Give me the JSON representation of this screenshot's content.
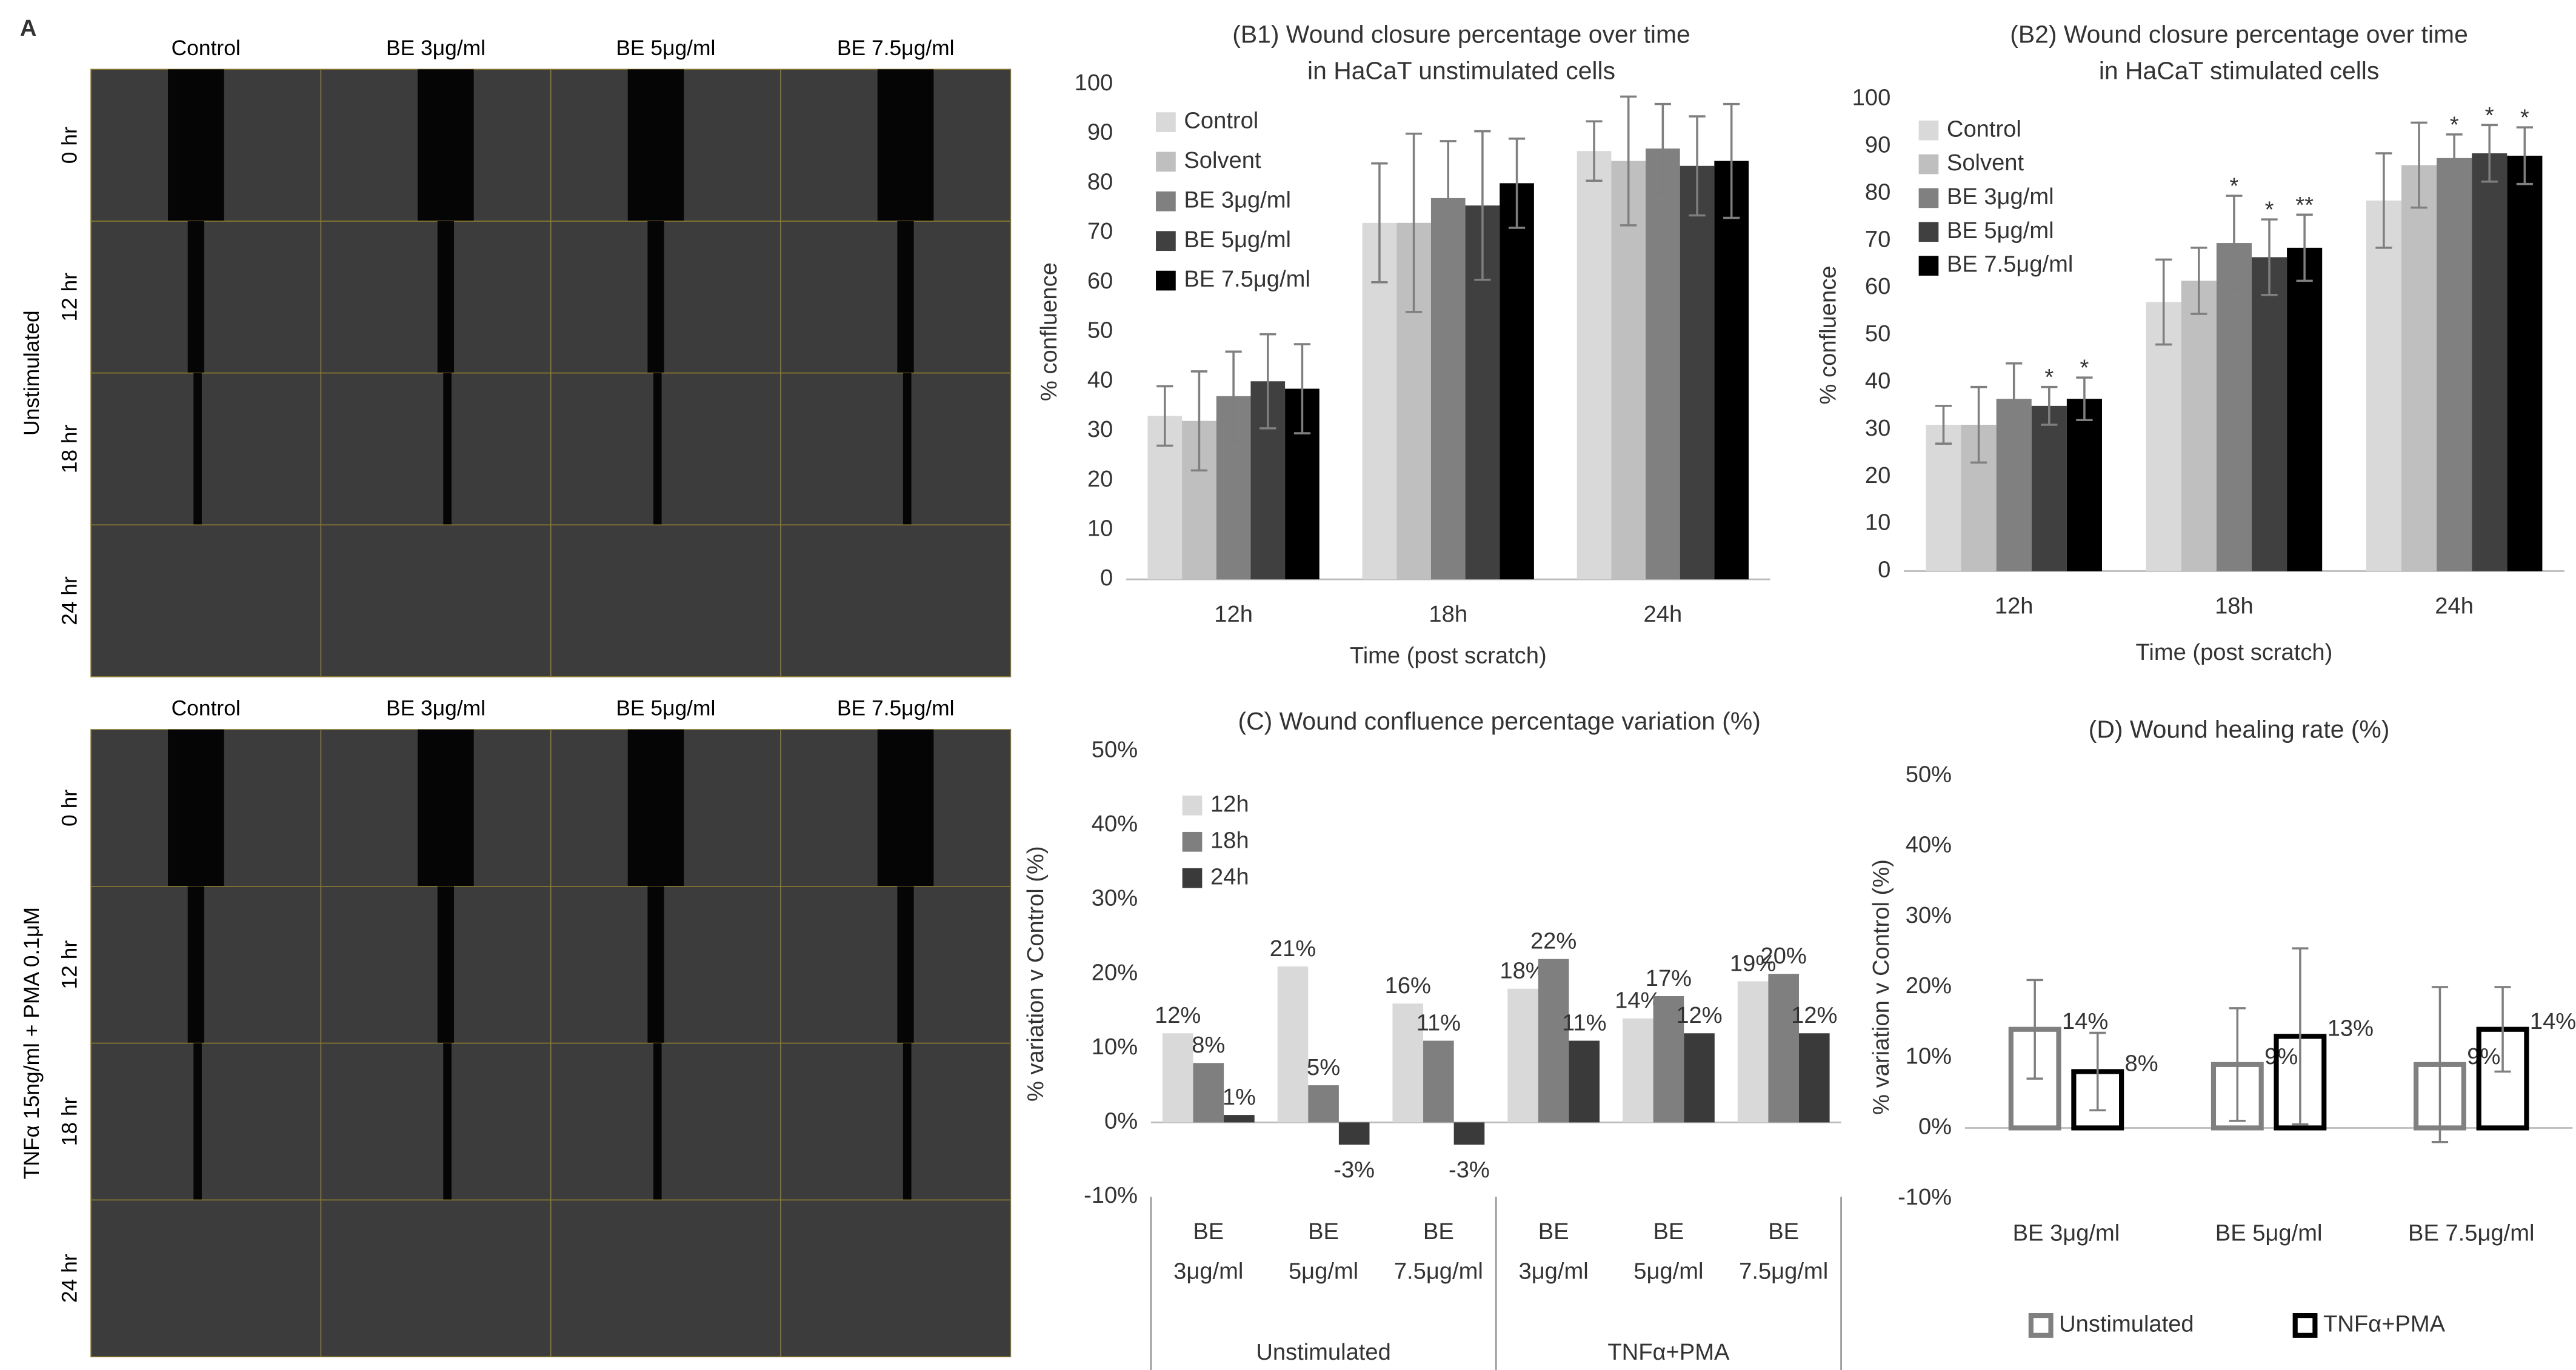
{
  "panel_a": {
    "label": "A",
    "columns": [
      "Control",
      "BE 3μg/ml",
      "BE 5μg/ml",
      "BE 7.5μg/ml"
    ],
    "rows": [
      "0 hr",
      "12 hr",
      "18 hr",
      "24 hr"
    ],
    "groups": [
      "Unstimulated",
      "TNFα 15ng/ml + PMA 0.1μM"
    ]
  },
  "chart_data": [
    {
      "type": "bar",
      "title": [
        "(B1) Wound closure percentage over time",
        "in HaCaT unstimulated cells"
      ],
      "x_label": "Time (post scratch)",
      "y_label": "% confluence",
      "categories": [
        "12h",
        "18h",
        "24h"
      ],
      "ylim": [
        0,
        100
      ],
      "yticks": [
        0,
        10,
        20,
        30,
        40,
        50,
        60,
        70,
        80,
        90,
        100
      ],
      "grid": false,
      "legend": "top-left",
      "series": [
        {
          "name": "Control",
          "color": "#d9d9d9",
          "values": [
            33,
            72,
            86.5
          ],
          "errors": [
            6,
            12,
            6
          ]
        },
        {
          "name": "Solvent",
          "color": "#bfbfbf",
          "values": [
            32,
            72,
            84.5
          ],
          "errors": [
            10,
            18,
            13
          ]
        },
        {
          "name": "BE 3μg/ml",
          "color": "#808080",
          "values": [
            37,
            77,
            87
          ],
          "errors": [
            9,
            11.5,
            9
          ]
        },
        {
          "name": "BE 5μg/ml",
          "color": "#404040",
          "values": [
            40,
            75.5,
            83.5
          ],
          "errors": [
            9.5,
            15,
            10
          ]
        },
        {
          "name": "BE 7.5μg/ml",
          "color": "#000000",
          "values": [
            38.5,
            80,
            84.5
          ],
          "errors": [
            9,
            9,
            11.5
          ]
        }
      ]
    },
    {
      "type": "bar",
      "title": [
        "(B2) Wound closure percentage over time",
        "in HaCaT stimulated cells"
      ],
      "x_label": "Time (post scratch)",
      "y_label": "% confluence",
      "categories": [
        "12h",
        "18h",
        "24h"
      ],
      "ylim": [
        0,
        100
      ],
      "yticks": [
        0,
        10,
        20,
        30,
        40,
        50,
        60,
        70,
        80,
        90,
        100
      ],
      "grid": false,
      "legend": "top-left",
      "series": [
        {
          "name": "Control",
          "color": "#d9d9d9",
          "values": [
            31,
            57,
            78.5
          ],
          "errors": [
            4,
            9,
            10
          ],
          "significance": [
            null,
            null,
            null
          ]
        },
        {
          "name": "Solvent",
          "color": "#bfbfbf",
          "values": [
            31,
            61.5,
            86
          ],
          "errors": [
            8,
            7,
            9
          ],
          "significance": [
            null,
            null,
            null
          ]
        },
        {
          "name": "BE 3μg/ml",
          "color": "#808080",
          "values": [
            36.5,
            69.5,
            87.5
          ],
          "errors": [
            7.5,
            10,
            5
          ],
          "significance": [
            null,
            "*",
            "*"
          ]
        },
        {
          "name": "BE 5μg/ml",
          "color": "#404040",
          "values": [
            35,
            66.5,
            88.5
          ],
          "errors": [
            4,
            8,
            6
          ],
          "significance": [
            "*",
            "*",
            "*"
          ]
        },
        {
          "name": "BE 7.5μg/ml",
          "color": "#000000",
          "values": [
            36.5,
            68.5,
            88
          ],
          "errors": [
            4.5,
            7,
            6
          ],
          "significance": [
            "*",
            "**",
            "*"
          ]
        }
      ]
    },
    {
      "type": "bar",
      "title": [
        "(C) Wound confluence percentage variation (%)"
      ],
      "y_label": "% variation v Control (%)",
      "categories": [
        [
          "BE",
          "3μg/ml"
        ],
        [
          "BE",
          "5μg/ml"
        ],
        [
          "BE",
          "7.5μg/ml"
        ],
        [
          "BE",
          "3μg/ml"
        ],
        [
          "BE",
          "5μg/ml"
        ],
        [
          "BE",
          "7.5μg/ml"
        ]
      ],
      "groups": [
        "Unstimulated",
        "TNFα+PMA"
      ],
      "ylim": [
        -10,
        50
      ],
      "yticks": [
        {
          "value": -10,
          "label": "-10%"
        },
        {
          "value": 0,
          "label": "0%"
        },
        {
          "value": 10,
          "label": "10%"
        },
        {
          "value": 20,
          "label": "20%"
        },
        {
          "value": 30,
          "label": "30%"
        },
        {
          "value": 40,
          "label": "40%"
        },
        {
          "value": 50,
          "label": "50%"
        }
      ],
      "grid": false,
      "legend": "top-left",
      "series": [
        {
          "name": "12h",
          "color": "#d9d9d9",
          "values": [
            12,
            21,
            16,
            18,
            14,
            19
          ],
          "value_labels": [
            "12%",
            "21%",
            "16%",
            "18%",
            "14%",
            "19%"
          ]
        },
        {
          "name": "18h",
          "color": "#7f7f7f",
          "values": [
            8,
            5,
            11,
            22,
            17,
            20
          ],
          "value_labels": [
            "8%",
            "5%",
            "11%",
            "22%",
            "17%",
            "20%"
          ]
        },
        {
          "name": "24h",
          "color": "#3a3a3a",
          "values": [
            1,
            -3,
            -3,
            11,
            12,
            12
          ],
          "value_labels": [
            "1%",
            "-3%",
            "-3%",
            "11%",
            "12%",
            "12%"
          ]
        }
      ]
    },
    {
      "type": "bar",
      "bar_style": "outline",
      "title": [
        "(D) Wound healing rate (%)"
      ],
      "y_label": "% variation v Control (%)",
      "categories": [
        "BE 3μg/ml",
        "BE 5μg/ml",
        "BE 7.5μg/ml"
      ],
      "ylim": [
        -10,
        50
      ],
      "yticks": [
        {
          "value": -10,
          "label": "-10%"
        },
        {
          "value": 0,
          "label": "0%"
        },
        {
          "value": 10,
          "label": "10%"
        },
        {
          "value": 20,
          "label": "20%"
        },
        {
          "value": 30,
          "label": "30%"
        },
        {
          "value": 40,
          "label": "40%"
        },
        {
          "value": 50,
          "label": "50%"
        }
      ],
      "grid": false,
      "legend": "bottom",
      "series": [
        {
          "name": "Unstimulated",
          "color": "#808080",
          "values": [
            14,
            9,
            9
          ],
          "errors": [
            7,
            8,
            11
          ],
          "value_labels": [
            "14%",
            "9%",
            "9%"
          ]
        },
        {
          "name": "TNFα+PMA",
          "color": "#000000",
          "values": [
            8,
            13,
            14
          ],
          "errors": [
            5.5,
            12.5,
            6
          ],
          "value_labels": [
            "8%",
            "13%",
            "14%"
          ]
        }
      ]
    }
  ]
}
